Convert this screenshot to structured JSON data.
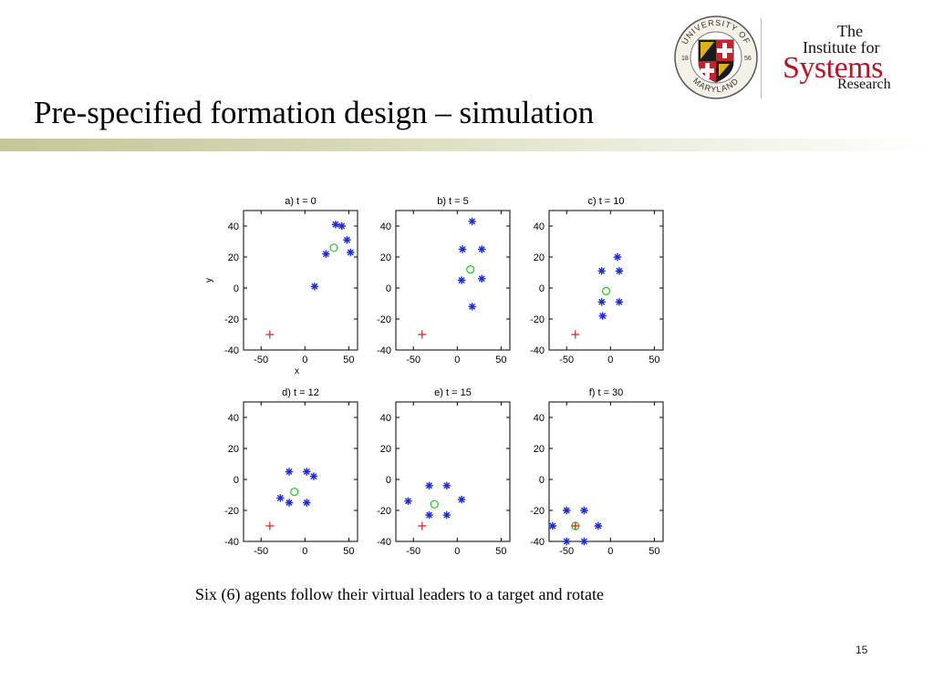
{
  "slide": {
    "title": "Pre-specified formation design – simulation",
    "caption": "Six (6) agents follow their virtual leaders to a target and rotate",
    "page_number": "15"
  },
  "logos": {
    "umd_seal": {
      "arc_top": "UNIVERSITY OF",
      "arc_bottom": "MARYLAND",
      "year_left": "18",
      "year_right": "56"
    },
    "isr": {
      "line1": "The",
      "line2": "Institute for",
      "line3": "Systems",
      "line4": "Research"
    }
  },
  "colors": {
    "agent": "#1f2bd6",
    "leader": "#22c322",
    "target": "#d81e1e",
    "brand_red": "#b01a25"
  },
  "chart_data": [
    {
      "type": "scatter",
      "title": "a)  t = 0",
      "xlabel": "x",
      "ylabel": "y",
      "xlim": [
        -70,
        60
      ],
      "ylim": [
        -40,
        50
      ],
      "xticks": [
        "-50",
        "0",
        "50"
      ],
      "yticks": [
        "40",
        "20",
        "0",
        "-20",
        "-40"
      ],
      "grid": false,
      "series": [
        {
          "role": "agents",
          "marker": "*",
          "color": "#1f2bd6",
          "points": [
            [
              35,
              41
            ],
            [
              42,
              40
            ],
            [
              48,
              31
            ],
            [
              52,
              23
            ],
            [
              24,
              22
            ],
            [
              11,
              1
            ]
          ]
        },
        {
          "role": "leader",
          "marker": "o",
          "color": "#22c322",
          "points": [
            [
              33,
              26
            ]
          ]
        },
        {
          "role": "target",
          "marker": "+",
          "color": "#d81e1e",
          "points": [
            [
              -40,
              -30
            ]
          ]
        }
      ]
    },
    {
      "type": "scatter",
      "title": "b)  t = 5",
      "xlabel": "",
      "ylabel": "",
      "xlim": [
        -70,
        60
      ],
      "ylim": [
        -40,
        50
      ],
      "xticks": [
        "-50",
        "0",
        "50"
      ],
      "yticks": [
        "40",
        "20",
        "0",
        "-20",
        "-40"
      ],
      "grid": false,
      "series": [
        {
          "role": "agents",
          "marker": "*",
          "color": "#1f2bd6",
          "points": [
            [
              17,
              43
            ],
            [
              6,
              25
            ],
            [
              28,
              25
            ],
            [
              5,
              5
            ],
            [
              28,
              6
            ],
            [
              17,
              -12
            ]
          ]
        },
        {
          "role": "leader",
          "marker": "o",
          "color": "#22c322",
          "points": [
            [
              15,
              12
            ]
          ]
        },
        {
          "role": "target",
          "marker": "+",
          "color": "#d81e1e",
          "points": [
            [
              -40,
              -30
            ]
          ]
        }
      ]
    },
    {
      "type": "scatter",
      "title": "c)  t = 10",
      "xlabel": "",
      "ylabel": "",
      "xlim": [
        -70,
        60
      ],
      "ylim": [
        -40,
        50
      ],
      "xticks": [
        "-50",
        "0",
        "50"
      ],
      "yticks": [
        "40",
        "20",
        "0",
        "-20",
        "-40"
      ],
      "grid": false,
      "series": [
        {
          "role": "agents",
          "marker": "*",
          "color": "#1f2bd6",
          "points": [
            [
              8,
              20
            ],
            [
              -10,
              11
            ],
            [
              10,
              11
            ],
            [
              -10,
              -9
            ],
            [
              10,
              -9
            ],
            [
              -9,
              -18
            ]
          ]
        },
        {
          "role": "leader",
          "marker": "o",
          "color": "#22c322",
          "points": [
            [
              -5,
              -2
            ]
          ]
        },
        {
          "role": "target",
          "marker": "+",
          "color": "#d81e1e",
          "points": [
            [
              -40,
              -30
            ]
          ]
        }
      ]
    },
    {
      "type": "scatter",
      "title": "d)  t = 12",
      "xlabel": "",
      "ylabel": "",
      "xlim": [
        -70,
        60
      ],
      "ylim": [
        -40,
        50
      ],
      "xticks": [
        "-50",
        "0",
        "50"
      ],
      "yticks": [
        "40",
        "20",
        "0",
        "-20",
        "-40"
      ],
      "grid": false,
      "series": [
        {
          "role": "agents",
          "marker": "*",
          "color": "#1f2bd6",
          "points": [
            [
              -18,
              5
            ],
            [
              2,
              5
            ],
            [
              10,
              2
            ],
            [
              -28,
              -12
            ],
            [
              -18,
              -15
            ],
            [
              2,
              -15
            ]
          ]
        },
        {
          "role": "leader",
          "marker": "o",
          "color": "#22c322",
          "points": [
            [
              -12,
              -8
            ]
          ]
        },
        {
          "role": "target",
          "marker": "+",
          "color": "#d81e1e",
          "points": [
            [
              -40,
              -30
            ]
          ]
        }
      ]
    },
    {
      "type": "scatter",
      "title": "e)  t = 15",
      "xlabel": "",
      "ylabel": "",
      "xlim": [
        -70,
        60
      ],
      "ylim": [
        -40,
        50
      ],
      "xticks": [
        "-50",
        "0",
        "50"
      ],
      "yticks": [
        "40",
        "20",
        "0",
        "-20",
        "-40"
      ],
      "grid": false,
      "series": [
        {
          "role": "agents",
          "marker": "*",
          "color": "#1f2bd6",
          "points": [
            [
              -32,
              -4
            ],
            [
              -12,
              -4
            ],
            [
              -56,
              -14
            ],
            [
              5,
              -13
            ],
            [
              -32,
              -23
            ],
            [
              -12,
              -23
            ]
          ]
        },
        {
          "role": "leader",
          "marker": "o",
          "color": "#22c322",
          "points": [
            [
              -26,
              -16
            ]
          ]
        },
        {
          "role": "target",
          "marker": "+",
          "color": "#d81e1e",
          "points": [
            [
              -40,
              -30
            ]
          ]
        }
      ]
    },
    {
      "type": "scatter",
      "title": "f)  t = 30",
      "xlabel": "",
      "ylabel": "",
      "xlim": [
        -70,
        60
      ],
      "ylim": [
        -40,
        50
      ],
      "xticks": [
        "-50",
        "0",
        "50"
      ],
      "yticks": [
        "40",
        "20",
        "0",
        "-20",
        "-40"
      ],
      "grid": false,
      "series": [
        {
          "role": "agents",
          "marker": "*",
          "color": "#1f2bd6",
          "points": [
            [
              -50,
              -20
            ],
            [
              -30,
              -20
            ],
            [
              -66,
              -30
            ],
            [
              -14,
              -30
            ],
            [
              -50,
              -40
            ],
            [
              -30,
              -40
            ]
          ]
        },
        {
          "role": "leader",
          "marker": "o",
          "color": "#22c322",
          "points": [
            [
              -40,
              -30
            ]
          ]
        },
        {
          "role": "target",
          "marker": "+",
          "color": "#d81e1e",
          "points": [
            [
              -40,
              -30
            ]
          ]
        }
      ]
    }
  ]
}
